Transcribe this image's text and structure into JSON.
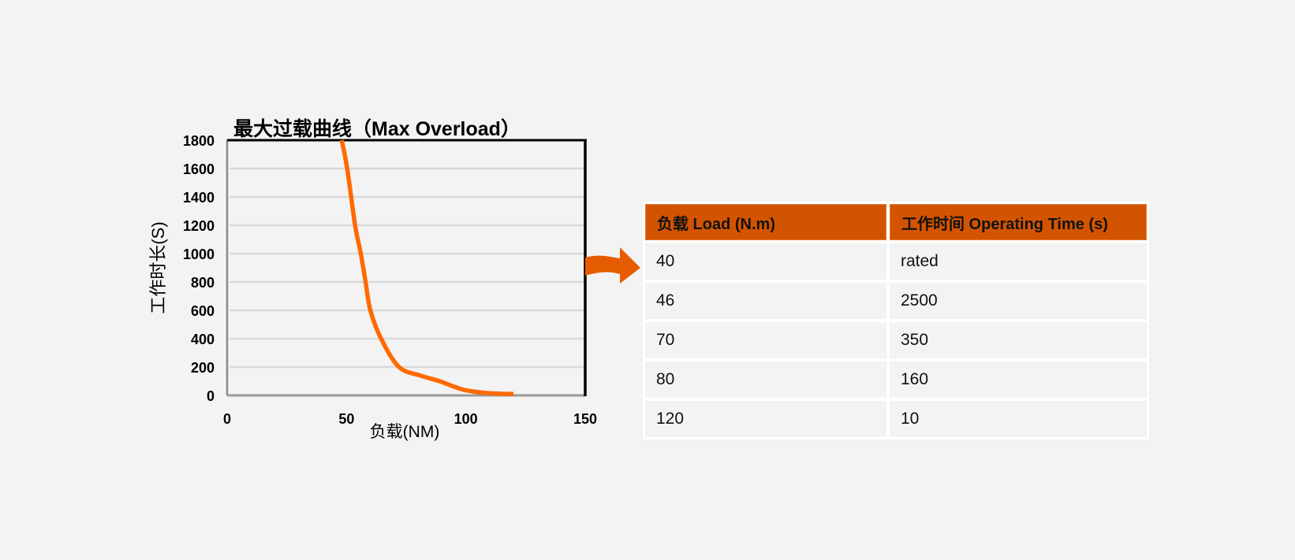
{
  "chart_data": {
    "type": "line",
    "title": "最大过载曲线（Max Overload）",
    "xlabel": "负载(NM)",
    "ylabel": "工作时长(S)",
    "xlim": [
      0,
      150
    ],
    "ylim": [
      0,
      1800
    ],
    "x_ticks": [
      "0",
      "50",
      "100",
      "150"
    ],
    "y_ticks": [
      "0",
      "200",
      "400",
      "600",
      "800",
      "1000",
      "1200",
      "1400",
      "1600",
      "1800"
    ],
    "grid": true,
    "series": [
      {
        "name": "Max Overload",
        "color": "#ff6a00",
        "x": [
          48,
          50.3,
          53.6,
          56,
          58,
          60,
          64.5,
          72,
          81,
          89,
          99,
          110,
          120
        ],
        "y": [
          1800,
          1600,
          1200,
          1000,
          800,
          600,
          400,
          200,
          140,
          100,
          40,
          15,
          10
        ]
      }
    ]
  },
  "arrow": {
    "icon": "right-arrow-icon",
    "color": "#e65c00"
  },
  "table": {
    "header_color": "#d35400",
    "columns": [
      "负载 Load (N.m)",
      "工作时间 Operating Time (s)"
    ],
    "rows": [
      [
        "40",
        "rated"
      ],
      [
        "46",
        "2500"
      ],
      [
        "70",
        "350"
      ],
      [
        "80",
        "160"
      ],
      [
        "120",
        "10"
      ]
    ]
  }
}
